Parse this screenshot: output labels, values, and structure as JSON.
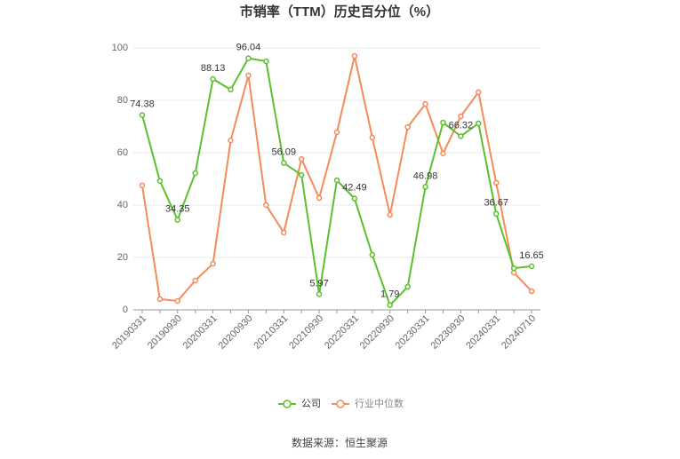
{
  "chart_data": {
    "type": "line",
    "title": "市销率（TTM）历史百分位（%）",
    "source": "数据来源：恒生聚源",
    "categories": [
      "20190331",
      null,
      "20190930",
      null,
      "20200331",
      null,
      "20200930",
      null,
      "20210331",
      null,
      "20210930",
      null,
      "20220331",
      null,
      "20220930",
      null,
      "20230331",
      null,
      "20230930",
      null,
      "20240331",
      null,
      "20240710"
    ],
    "series": [
      {
        "name": "公司",
        "color": "#5ac12c",
        "values": [
          74.38,
          49.2,
          34.35,
          52.2,
          88.13,
          84.1,
          96.04,
          94.9,
          56.09,
          51.5,
          5.97,
          49.5,
          42.49,
          21.0,
          1.79,
          8.8,
          46.98,
          71.5,
          66.32,
          71.2,
          36.67,
          15.9,
          16.65
        ],
        "value_labels": [
          "74.38",
          null,
          "34.35",
          null,
          "88.13",
          null,
          "96.04",
          null,
          "56.09",
          null,
          "5.97",
          null,
          "42.49",
          null,
          "1.79",
          null,
          "46.98",
          null,
          "66.32",
          null,
          "36.67",
          null,
          "16.65"
        ]
      },
      {
        "name": "行业中位数",
        "color": "#f58a5a",
        "values": [
          47.5,
          4.1,
          3.4,
          11.2,
          17.6,
          64.7,
          89.5,
          40.0,
          29.5,
          57.6,
          42.7,
          67.8,
          96.9,
          65.8,
          36.3,
          69.8,
          78.6,
          59.7,
          73.9,
          83.1,
          48.5,
          14.2,
          7.1
        ]
      }
    ],
    "ylim": [
      0,
      100
    ],
    "yticks": [
      0,
      20,
      40,
      60,
      80,
      100
    ],
    "grid": true
  }
}
